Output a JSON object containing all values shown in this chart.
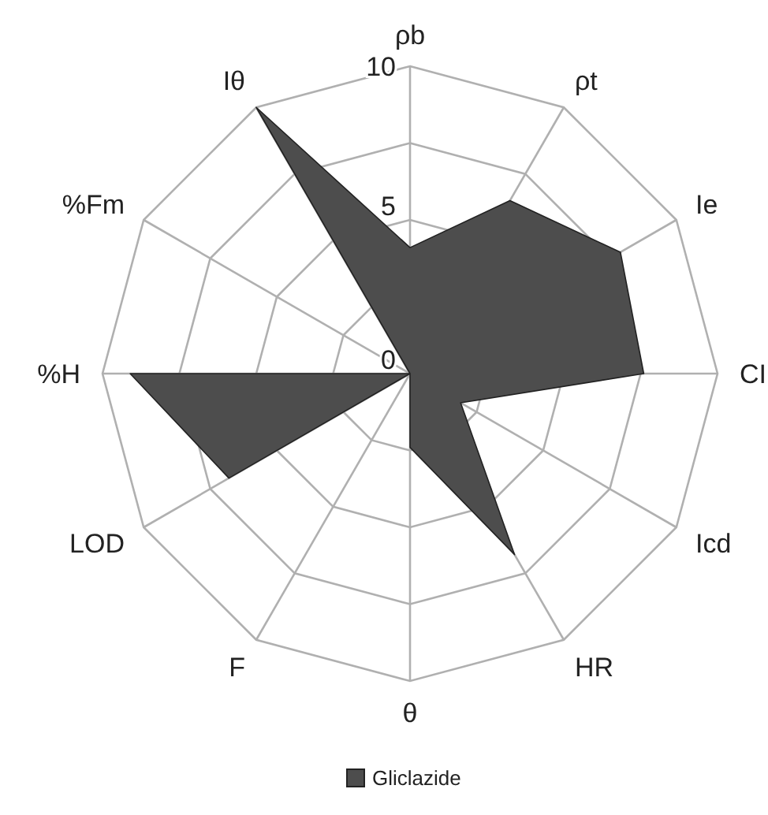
{
  "chart_data": {
    "type": "radar",
    "categories": [
      "ρb",
      "ρt",
      "Ie",
      "CI",
      "Icd",
      "HR",
      "θ",
      "F",
      "LOD",
      "%H",
      "%Fm",
      "Iθ"
    ],
    "series": [
      {
        "name": "Gliclazide",
        "color": "#4d4d4d",
        "values": [
          4.1,
          6.5,
          7.9,
          7.6,
          1.9,
          6.8,
          2.4,
          0,
          6.8,
          9.1,
          0,
          10
        ]
      }
    ],
    "ylim": [
      0,
      10
    ],
    "yticks": [
      0,
      5,
      10
    ],
    "grid": true,
    "legend": "bottom"
  }
}
